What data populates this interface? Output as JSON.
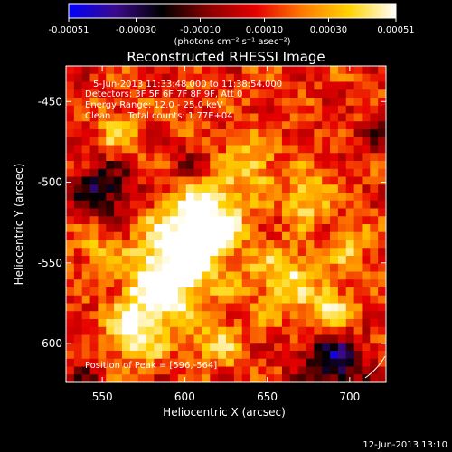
{
  "chart_data": {
    "type": "heatmap",
    "title": "Reconstructed RHESSI Image",
    "xlabel": "Heliocentric X (arcsec)",
    "ylabel": "Heliocentric Y (arcsec)",
    "x_ticks": [
      550,
      600,
      650,
      700
    ],
    "y_ticks": [
      -450,
      -500,
      -550,
      -600
    ],
    "xlim": [
      528,
      722
    ],
    "ylim": [
      -624,
      -428
    ],
    "colorbar": {
      "min": -0.00051,
      "max": 0.00051,
      "ticks": [
        "-0.00051",
        "-0.00030",
        "-0.00010",
        "0.00010",
        "0.00030",
        "0.00051"
      ],
      "tick_values": [
        -0.00051,
        -0.0003,
        -0.0001,
        0.0001,
        0.0003,
        0.00051
      ],
      "units_label": "(photons cm⁻² s⁻¹ asec⁻²)",
      "colors": [
        "#0000ff",
        "#3a0a8c",
        "#000000",
        "#8a0000",
        "#e60000",
        "#ff7a00",
        "#ffd400",
        "#ffffff"
      ]
    },
    "annotations": [
      "5-Jun-2013 11:33:48.000 to 11:38:54.000",
      "Detectors: 3F 5F 6F 7F 8F 9F, Att 0",
      "Energy Range: 12.0 - 25.0 keV",
      "Clean      Total counts: 1.77E+04"
    ],
    "peak_label": "Position of Peak = [596,-564]",
    "peak": [
      596,
      -564
    ],
    "grid_size": [
      40,
      40
    ],
    "hotspots": [
      {
        "x": 600,
        "y": -540,
        "s": 18,
        "v": 0.00051
      },
      {
        "x": 585,
        "y": -568,
        "s": 16,
        "v": 0.00046
      },
      {
        "x": 615,
        "y": -520,
        "s": 14,
        "v": 0.0004
      },
      {
        "x": 570,
        "y": -595,
        "s": 12,
        "v": 0.00038
      },
      {
        "x": 660,
        "y": -560,
        "s": 15,
        "v": 0.00034
      },
      {
        "x": 690,
        "y": -580,
        "s": 10,
        "v": 0.0004
      },
      {
        "x": 675,
        "y": -510,
        "s": 10,
        "v": 0.00035
      },
      {
        "x": 640,
        "y": -490,
        "s": 12,
        "v": 0.0003
      },
      {
        "x": 560,
        "y": -470,
        "s": 10,
        "v": 0.0003
      },
      {
        "x": 700,
        "y": -540,
        "s": 8,
        "v": 0.00028
      },
      {
        "x": 620,
        "y": -600,
        "s": 10,
        "v": 0.00032
      },
      {
        "x": 545,
        "y": -540,
        "s": 10,
        "v": 0.00022
      }
    ],
    "coldspots": [
      {
        "x": 550,
        "y": -505,
        "s": 14,
        "v": -0.0003
      },
      {
        "x": 690,
        "y": -612,
        "s": 14,
        "v": -0.0004
      },
      {
        "x": 600,
        "y": -490,
        "s": 8,
        "v": -0.0001
      },
      {
        "x": 720,
        "y": -470,
        "s": 10,
        "v": -0.00012
      },
      {
        "x": 540,
        "y": -620,
        "s": 8,
        "v": -0.00012
      }
    ]
  },
  "footer": {
    "timestamp": "12-Jun-2013 13:10"
  }
}
